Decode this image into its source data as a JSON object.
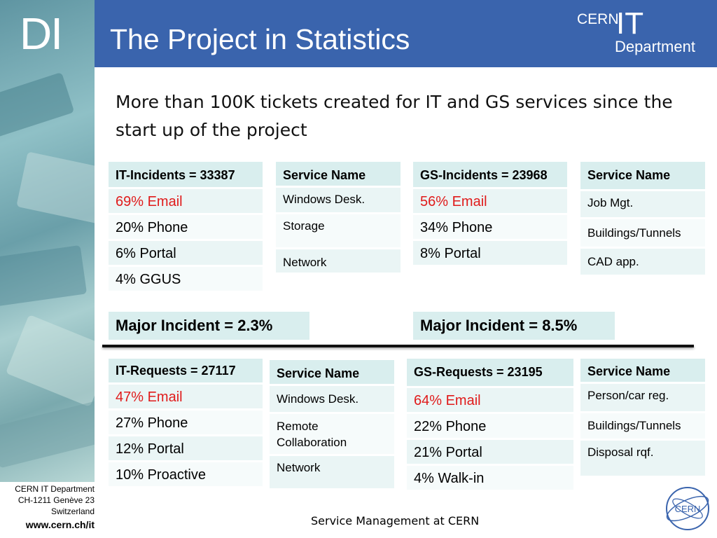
{
  "header": {
    "logo_text": "DI",
    "title": "The Project in Statistics",
    "logo": {
      "cern": "CERN",
      "it": "IT",
      "department": "Department"
    }
  },
  "intro": "More than 100K tickets created for IT and GS services since the start up of the project",
  "it_incidents": {
    "header": "IT-Incidents = 33387",
    "rows": [
      "69% Email",
      "20% Phone",
      "6% Portal",
      "4% GGUS"
    ]
  },
  "it_incident_services": {
    "header": "Service Name",
    "rows": [
      "Windows Desk.",
      "Storage",
      "Network"
    ]
  },
  "gs_incidents": {
    "header": "GS-Incidents = 23968",
    "rows": [
      "56% Email",
      "34% Phone",
      "8% Portal"
    ]
  },
  "gs_incident_services": {
    "header": "Service Name",
    "rows": [
      "Job Mgt.",
      "Buildings/Tunnels",
      "CAD app."
    ]
  },
  "major_it": "Major Incident = 2.3%",
  "major_gs": "Major Incident = 8.5%",
  "it_requests": {
    "header": "IT-Requests = 27117",
    "rows": [
      "47% Email",
      "27% Phone",
      "12% Portal",
      "10% Proactive"
    ]
  },
  "it_request_services": {
    "header": "Service Name",
    "rows": [
      "Windows Desk.",
      "Remote Collaboration",
      "Network"
    ]
  },
  "gs_requests": {
    "header": "GS-Requests = 23195",
    "rows": [
      "64% Email",
      "22% Phone",
      "21% Portal",
      "4% Walk-in"
    ]
  },
  "gs_request_services": {
    "header": "Service Name",
    "rows": [
      "Person/car reg.",
      "Buildings/Tunnels",
      "Disposal rqf."
    ]
  },
  "footer": {
    "address_line1": "CERN IT Department",
    "address_line2": "CH-1211 Genève 23",
    "address_line3": "Switzerland",
    "url": "www.cern.ch/it",
    "center": "Service Management at CERN",
    "emblem_text": "CERN"
  },
  "colors": {
    "header_band": "#3a64ad",
    "table_header": "#d9eeee",
    "email_highlight": "#e01b1b"
  }
}
